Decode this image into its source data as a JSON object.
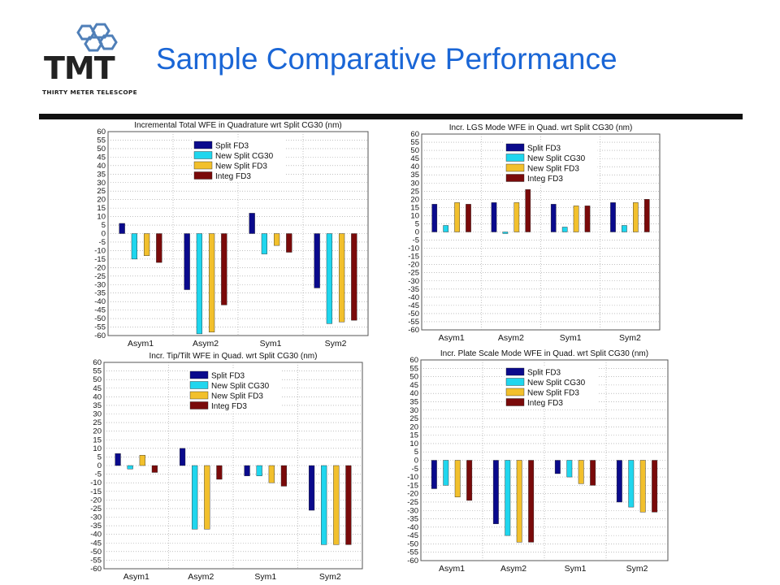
{
  "logo": {
    "wordmark": "TMT",
    "subtitle": "THIRTY METER TELESCOPE",
    "icon": "hexagon-mirror-icon"
  },
  "slide": {
    "title": "Sample Comparative Performance"
  },
  "colors": {
    "title": "#1a66d6",
    "series": [
      "#0a0a8c",
      "#1fd6ee",
      "#f2c02c",
      "#7a0a0a"
    ],
    "frame": "#555555",
    "grid": "#9a9a9a"
  },
  "chart_data": [
    {
      "type": "bar",
      "title": "Incremental Total WFE in Quadrature wrt Split CG30 (nm)",
      "categories": [
        "Asym1",
        "Asym2",
        "Sym1",
        "Sym2"
      ],
      "ylim": [
        -60,
        60
      ],
      "ytick_step": 5,
      "grid": true,
      "legend_position": "top-center",
      "series": [
        {
          "name": "Split FD3",
          "values": [
            6,
            -33,
            12,
            -32
          ]
        },
        {
          "name": "New Split CG30",
          "values": [
            -15,
            -59,
            -12,
            -53
          ]
        },
        {
          "name": "New Split FD3",
          "values": [
            -13,
            -58,
            -7,
            -52
          ]
        },
        {
          "name": "Integ FD3",
          "values": [
            -17,
            -42,
            -11,
            -51
          ]
        }
      ]
    },
    {
      "type": "bar",
      "title": "Incr. LGS Mode WFE in Quad. wrt Split CG30 (nm)",
      "categories": [
        "Asym1",
        "Asym2",
        "Sym1",
        "Sym2"
      ],
      "ylim": [
        -60,
        60
      ],
      "ytick_step": 5,
      "grid": true,
      "legend_position": "top-center",
      "series": [
        {
          "name": "Split FD3",
          "values": [
            17,
            18,
            17,
            18
          ]
        },
        {
          "name": "New Split CG30",
          "values": [
            4,
            -1,
            3,
            4
          ]
        },
        {
          "name": "New Split FD3",
          "values": [
            18,
            18,
            16,
            18
          ]
        },
        {
          "name": "Integ FD3",
          "values": [
            17,
            26,
            16,
            20
          ]
        }
      ]
    },
    {
      "type": "bar",
      "title": "Incr. Tip/Tilt WFE in Quad. wrt Split CG30 (nm)",
      "categories": [
        "Asym1",
        "Asym2",
        "Sym1",
        "Sym2"
      ],
      "ylim": [
        -60,
        60
      ],
      "ytick_step": 5,
      "grid": true,
      "legend_position": "top-center",
      "series": [
        {
          "name": "Split FD3",
          "values": [
            7,
            10,
            -6,
            -26
          ]
        },
        {
          "name": "New Split CG30",
          "values": [
            -2,
            -37,
            -6,
            -46
          ]
        },
        {
          "name": "New Split FD3",
          "values": [
            6,
            -37,
            -10,
            -46
          ]
        },
        {
          "name": "Integ FD3",
          "values": [
            -4,
            -8,
            -12,
            -46
          ]
        }
      ]
    },
    {
      "type": "bar",
      "title": "Incr. Plate Scale Mode WFE in Quad. wrt Split CG30 (nm)",
      "categories": [
        "Asym1",
        "Asym2",
        "Sym1",
        "Sym2"
      ],
      "ylim": [
        -60,
        60
      ],
      "ytick_step": 5,
      "grid": true,
      "legend_position": "top-center",
      "series": [
        {
          "name": "Split FD3",
          "values": [
            -17,
            -38,
            -8,
            -25
          ]
        },
        {
          "name": "New Split CG30",
          "values": [
            -15,
            -45,
            -10,
            -28
          ]
        },
        {
          "name": "New Split FD3",
          "values": [
            -22,
            -49,
            -14,
            -31
          ]
        },
        {
          "name": "Integ FD3",
          "values": [
            -24,
            -49,
            -15,
            -31
          ]
        }
      ]
    }
  ]
}
